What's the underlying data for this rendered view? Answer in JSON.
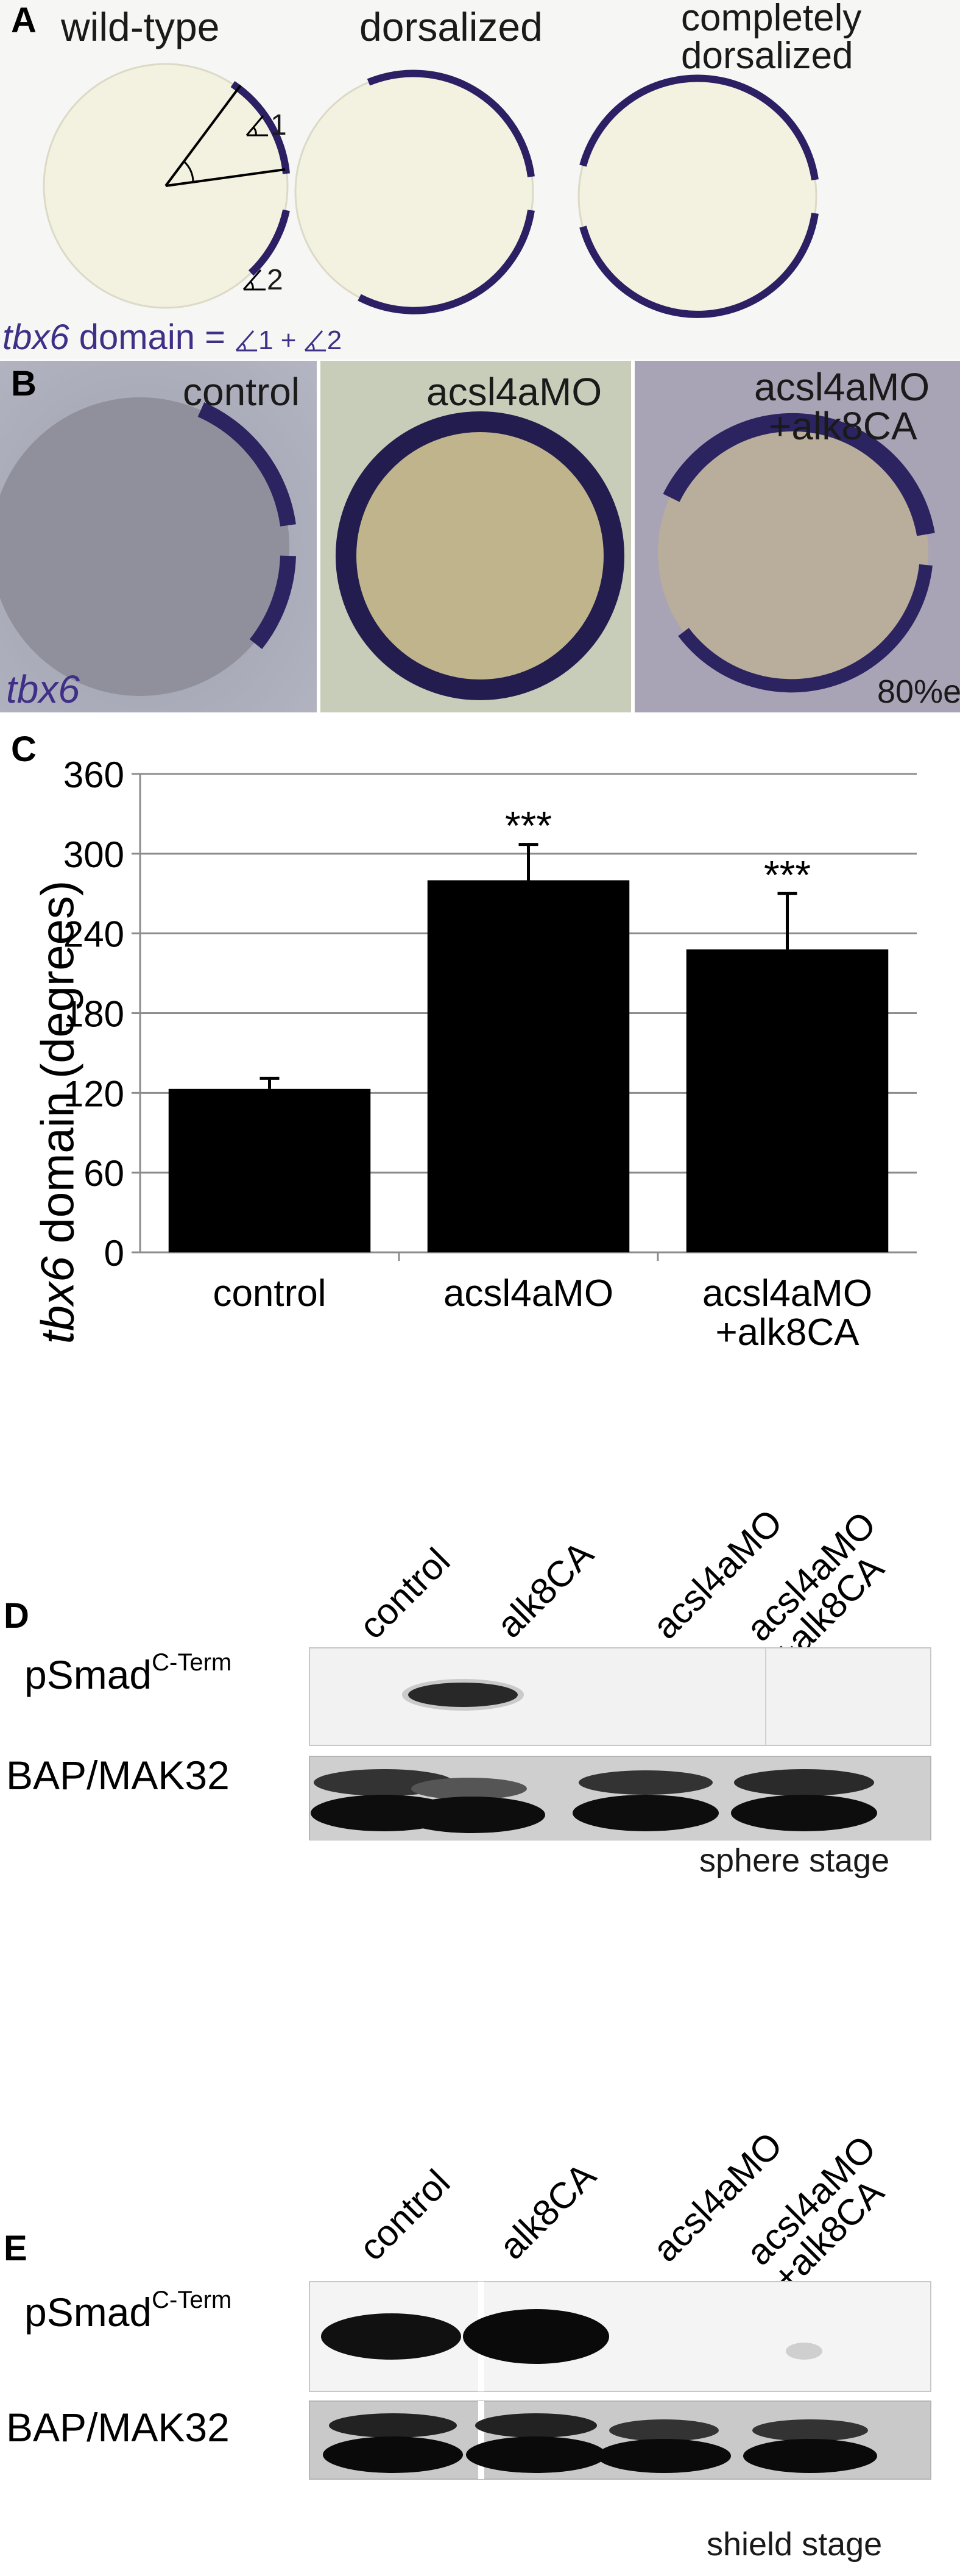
{
  "panel_a": {
    "label": "A",
    "titles": [
      "wild-type",
      "dorsalized",
      "completely",
      "dorsalized"
    ],
    "angle_labels": [
      "1",
      "2"
    ],
    "formula": {
      "gene": "tbx6",
      "text": " domain = ",
      "angle1": "1",
      "plus": " + ",
      "angle2": "2"
    },
    "colors": {
      "embryo": "#f3f1df",
      "stain": "#2c1f63",
      "formula": "#3f2f86"
    }
  },
  "panel_b": {
    "label": "B",
    "conditions": [
      "control",
      "acsl4aMO",
      "acsl4aMO",
      "+alk8CA"
    ],
    "gene": "tbx6",
    "stage": "80%e"
  },
  "chart_data": {
    "type": "bar",
    "label": "C",
    "categories": [
      "control",
      "acsl4aMO",
      "acsl4aMO\n+alk8CA"
    ],
    "category_lines": [
      [
        "control"
      ],
      [
        "acsl4aMO"
      ],
      [
        "acsl4aMO",
        "+alk8CA"
      ]
    ],
    "values": [
      123,
      280,
      228
    ],
    "errors": [
      8,
      27,
      42
    ],
    "significance": [
      "",
      "***",
      "***"
    ],
    "ylabel_gene": "tbx6",
    "ylabel_rest": " domain (degrees)",
    "ylim": [
      0,
      360
    ],
    "yticks": [
      "0",
      "60",
      "120",
      "180",
      "240",
      "300",
      "360"
    ],
    "grid": true
  },
  "panel_d": {
    "label": "D",
    "lanes": [
      [
        "control"
      ],
      [
        "alk8CA"
      ],
      [
        "acsl4aMO"
      ],
      [
        "acsl4aMO",
        "+alk8CA"
      ]
    ],
    "rows": [
      {
        "name": "pSmad",
        "sup": "C-Term"
      },
      {
        "name": "BAP/MAK32",
        "sup": ""
      }
    ],
    "stage": "sphere stage"
  },
  "panel_e": {
    "label": "E",
    "lanes": [
      [
        "control"
      ],
      [
        "alk8CA"
      ],
      [
        "acsl4aMO"
      ],
      [
        "acsl4aMO",
        "+alk8CA"
      ]
    ],
    "rows": [
      {
        "name": "pSmad",
        "sup": "C-Term"
      },
      {
        "name": "BAP/MAK32",
        "sup": ""
      }
    ],
    "stage": "shield stage"
  }
}
